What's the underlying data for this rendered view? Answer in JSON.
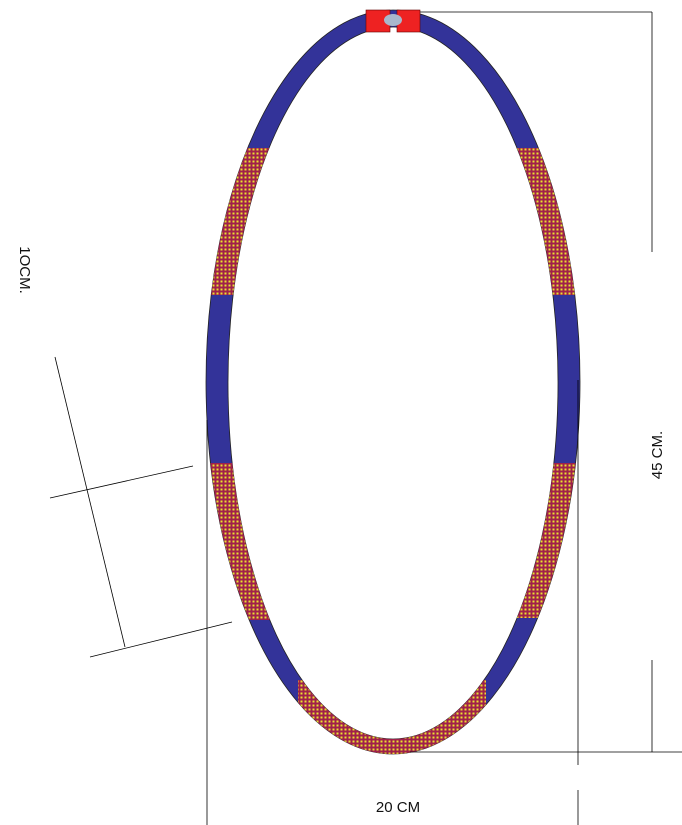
{
  "labels": {
    "side": "1OCM.",
    "height": "45 CM.",
    "width": "20 CM"
  }
}
